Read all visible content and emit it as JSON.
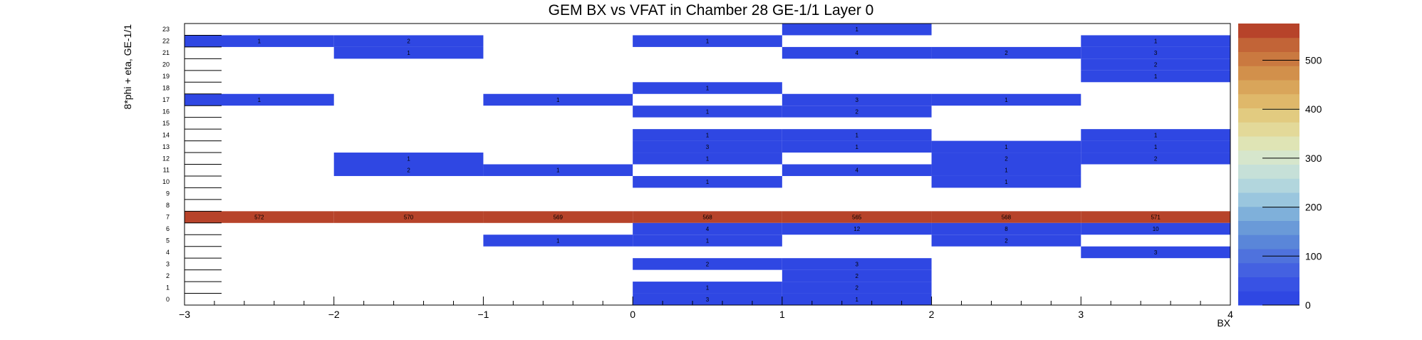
{
  "chart_data": {
    "type": "heatmap",
    "title": "GEM BX vs VFAT in Chamber 28 GE-1/1 Layer 0",
    "xlabel": "BX",
    "ylabel": "8*phi + eta, GE-1/1",
    "xlim": [
      -3,
      4
    ],
    "ylim": [
      0,
      24
    ],
    "x_ticks": [
      "−3",
      "−2",
      "−1",
      "0",
      "1",
      "2",
      "3",
      "4"
    ],
    "y_ticks": [
      "0",
      "1",
      "2",
      "3",
      "4",
      "5",
      "6",
      "7",
      "8",
      "9",
      "10",
      "11",
      "12",
      "13",
      "14",
      "15",
      "16",
      "17",
      "18",
      "19",
      "20",
      "21",
      "22",
      "23"
    ],
    "x_bins": [
      -2.5,
      -1.5,
      -0.5,
      0.5,
      1.5,
      2.5,
      3.5
    ],
    "colorbar": {
      "min": 0,
      "max": 575,
      "ticks": [
        "0",
        "100",
        "200",
        "300",
        "400",
        "500"
      ]
    },
    "cells": [
      {
        "x": 1.5,
        "y": 23,
        "v": 1
      },
      {
        "x": -2.5,
        "y": 22,
        "v": 1
      },
      {
        "x": -1.5,
        "y": 22,
        "v": 2
      },
      {
        "x": 0.5,
        "y": 22,
        "v": 1
      },
      {
        "x": 3.5,
        "y": 22,
        "v": 1
      },
      {
        "x": -1.5,
        "y": 21,
        "v": 1
      },
      {
        "x": 1.5,
        "y": 21,
        "v": 4
      },
      {
        "x": 2.5,
        "y": 21,
        "v": 2
      },
      {
        "x": 3.5,
        "y": 21,
        "v": 3
      },
      {
        "x": 3.5,
        "y": 20,
        "v": 2
      },
      {
        "x": 3.5,
        "y": 19,
        "v": 1
      },
      {
        "x": 0.5,
        "y": 18,
        "v": 1
      },
      {
        "x": -2.5,
        "y": 17,
        "v": 1
      },
      {
        "x": -0.5,
        "y": 17,
        "v": 1
      },
      {
        "x": 1.5,
        "y": 17,
        "v": 3
      },
      {
        "x": 2.5,
        "y": 17,
        "v": 1
      },
      {
        "x": 0.5,
        "y": 16,
        "v": 1
      },
      {
        "x": 1.5,
        "y": 16,
        "v": 2
      },
      {
        "x": 0.5,
        "y": 14,
        "v": 1
      },
      {
        "x": 1.5,
        "y": 14,
        "v": 1
      },
      {
        "x": 3.5,
        "y": 14,
        "v": 1
      },
      {
        "x": 0.5,
        "y": 13,
        "v": 3
      },
      {
        "x": 1.5,
        "y": 13,
        "v": 1
      },
      {
        "x": 2.5,
        "y": 13,
        "v": 1
      },
      {
        "x": 3.5,
        "y": 13,
        "v": 1
      },
      {
        "x": -1.5,
        "y": 12,
        "v": 1
      },
      {
        "x": 0.5,
        "y": 12,
        "v": 1
      },
      {
        "x": 2.5,
        "y": 12,
        "v": 2
      },
      {
        "x": 3.5,
        "y": 12,
        "v": 2
      },
      {
        "x": -1.5,
        "y": 11,
        "v": 2
      },
      {
        "x": -0.5,
        "y": 11,
        "v": 1
      },
      {
        "x": 1.5,
        "y": 11,
        "v": 4
      },
      {
        "x": 2.5,
        "y": 11,
        "v": 1
      },
      {
        "x": 0.5,
        "y": 10,
        "v": 1
      },
      {
        "x": 2.5,
        "y": 10,
        "v": 1
      },
      {
        "x": -2.5,
        "y": 7,
        "v": 572
      },
      {
        "x": -1.5,
        "y": 7,
        "v": 570
      },
      {
        "x": -0.5,
        "y": 7,
        "v": 569
      },
      {
        "x": 0.5,
        "y": 7,
        "v": 568
      },
      {
        "x": 1.5,
        "y": 7,
        "v": 565
      },
      {
        "x": 2.5,
        "y": 7,
        "v": 568
      },
      {
        "x": 3.5,
        "y": 7,
        "v": 571
      },
      {
        "x": 0.5,
        "y": 6,
        "v": 4
      },
      {
        "x": 1.5,
        "y": 6,
        "v": 12
      },
      {
        "x": 2.5,
        "y": 6,
        "v": 8
      },
      {
        "x": 3.5,
        "y": 6,
        "v": 10
      },
      {
        "x": -0.5,
        "y": 5,
        "v": 1
      },
      {
        "x": 0.5,
        "y": 5,
        "v": 1
      },
      {
        "x": 2.5,
        "y": 5,
        "v": 2
      },
      {
        "x": 3.5,
        "y": 4,
        "v": 3
      },
      {
        "x": 0.5,
        "y": 3,
        "v": 2
      },
      {
        "x": 1.5,
        "y": 3,
        "v": 3
      },
      {
        "x": 1.5,
        "y": 2,
        "v": 2
      },
      {
        "x": 0.5,
        "y": 1,
        "v": 1
      },
      {
        "x": 1.5,
        "y": 1,
        "v": 2
      },
      {
        "x": 0.5,
        "y": 0,
        "v": 3
      },
      {
        "x": 1.5,
        "y": 0,
        "v": 1
      }
    ],
    "colors": {
      "low": "#2f47e3",
      "high": "#b7432a",
      "palette": [
        "#2f47e3",
        "#3852e4",
        "#4461e1",
        "#4f72dd",
        "#5a86d9",
        "#6a9ad8",
        "#7fb0da",
        "#9ac6de",
        "#b2d6dd",
        "#c6e0d8",
        "#d6e6cc",
        "#dfe4b5",
        "#e3d999",
        "#e2cb80",
        "#dfb86a",
        "#d9a55a",
        "#d2904b",
        "#ca7940",
        "#c26437",
        "#b7432a"
      ]
    },
    "grid": false,
    "legend": "none"
  }
}
